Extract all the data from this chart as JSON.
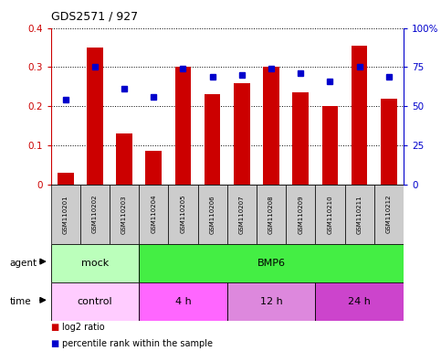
{
  "title": "GDS2571 / 927",
  "samples": [
    "GSM110201",
    "GSM110202",
    "GSM110203",
    "GSM110204",
    "GSM110205",
    "GSM110206",
    "GSM110207",
    "GSM110208",
    "GSM110209",
    "GSM110210",
    "GSM110211",
    "GSM110212"
  ],
  "log2_ratio": [
    0.03,
    0.35,
    0.13,
    0.085,
    0.3,
    0.23,
    0.26,
    0.3,
    0.235,
    0.2,
    0.355,
    0.22
  ],
  "percentile_pct": [
    54,
    75,
    61,
    56,
    74,
    69,
    70,
    74,
    71,
    66,
    75,
    69
  ],
  "bar_color": "#cc0000",
  "dot_color": "#0000cc",
  "ylim_left": [
    0,
    0.4
  ],
  "yticks_left": [
    0,
    0.1,
    0.2,
    0.3,
    0.4
  ],
  "ytick_labels_left": [
    "0",
    "0.1",
    "0.2",
    "0.3",
    "0.4"
  ],
  "yticks_right": [
    0,
    25,
    50,
    75,
    100
  ],
  "ytick_labels_right": [
    "0",
    "25",
    "50",
    "75",
    "100%"
  ],
  "agent_groups": [
    {
      "label": "mock",
      "start": 0,
      "end": 3,
      "color": "#bbffbb"
    },
    {
      "label": "BMP6",
      "start": 3,
      "end": 12,
      "color": "#44ee44"
    }
  ],
  "time_groups": [
    {
      "label": "control",
      "start": 0,
      "end": 3,
      "color": "#ffccff"
    },
    {
      "label": "4 h",
      "start": 3,
      "end": 6,
      "color": "#ff66ff"
    },
    {
      "label": "12 h",
      "start": 6,
      "end": 9,
      "color": "#dd88dd"
    },
    {
      "label": "24 h",
      "start": 9,
      "end": 12,
      "color": "#cc44cc"
    }
  ],
  "legend_items": [
    {
      "label": "log2 ratio",
      "color": "#cc0000"
    },
    {
      "label": "percentile rank within the sample",
      "color": "#0000cc"
    }
  ],
  "bg_color": "white",
  "left_axis_color": "#cc0000",
  "right_axis_color": "#0000cc",
  "sample_box_color": "#cccccc"
}
